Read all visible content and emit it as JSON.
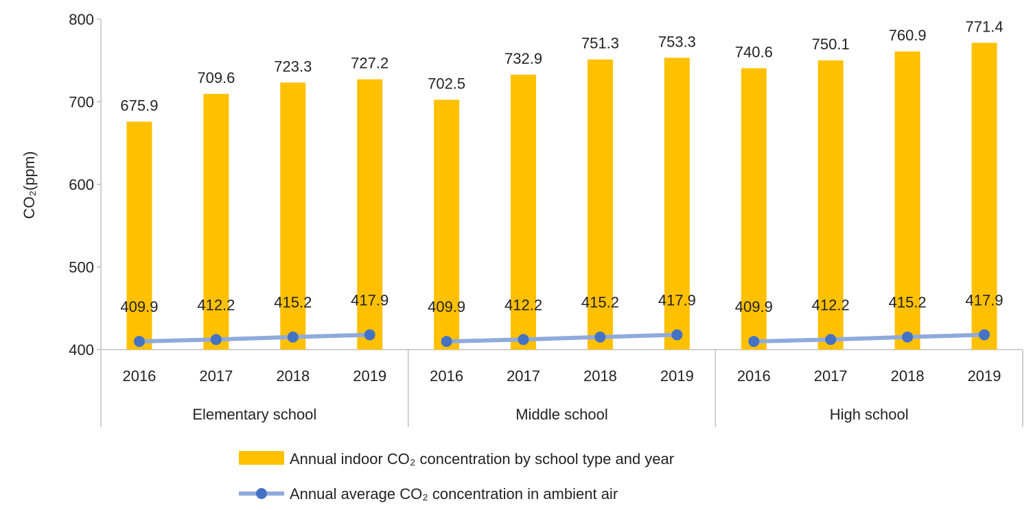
{
  "chart_data": {
    "type": "bar",
    "ylabel": "CO₂(ppm)",
    "ylim": [
      400,
      800
    ],
    "yticks": [
      400,
      500,
      600,
      700,
      800
    ],
    "grid": false,
    "groups": [
      {
        "label": "Elementary school",
        "years": [
          "2016",
          "2017",
          "2018",
          "2019"
        ]
      },
      {
        "label": "Middle school",
        "years": [
          "2016",
          "2017",
          "2018",
          "2019"
        ]
      },
      {
        "label": "High school",
        "years": [
          "2016",
          "2017",
          "2018",
          "2019"
        ]
      }
    ],
    "series": [
      {
        "name": "Annual indoor CO₂ concentration by school type and year",
        "kind": "bar",
        "color": "#FFC000",
        "values": [
          675.9,
          709.6,
          723.3,
          727.2,
          702.5,
          732.9,
          751.3,
          753.3,
          740.6,
          750.1,
          760.9,
          771.4
        ]
      },
      {
        "name": "Annual average CO₂ concentration in ambient air",
        "kind": "line",
        "color": "#8FAADC",
        "marker_color": "#4472C4",
        "values": [
          409.9,
          412.2,
          415.2,
          417.9,
          409.9,
          412.2,
          415.2,
          417.9,
          409.9,
          412.2,
          415.2,
          417.9
        ]
      }
    ],
    "legend_position": "bottom"
  }
}
